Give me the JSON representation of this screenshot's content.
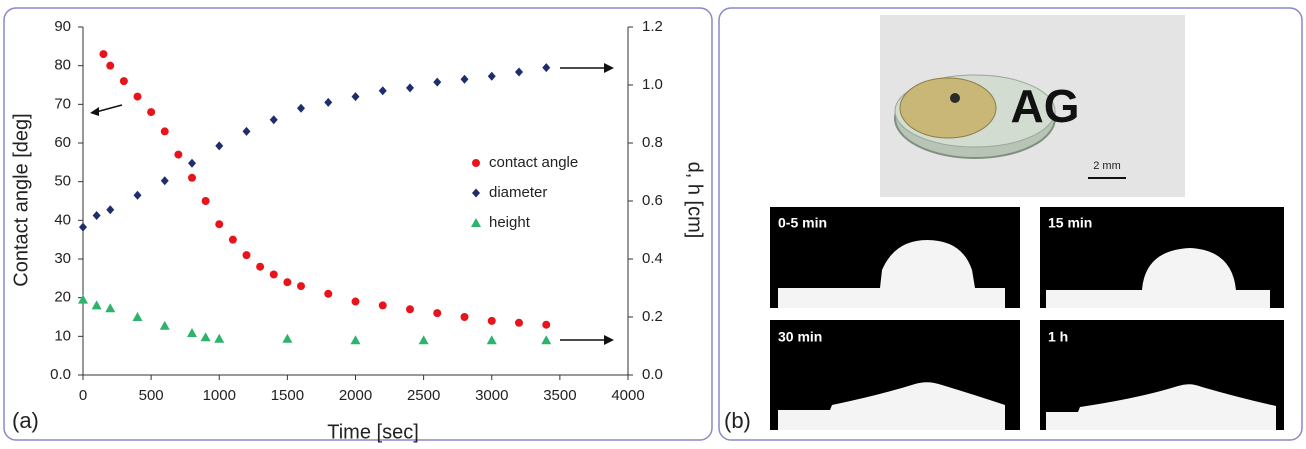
{
  "chart_data": {
    "type": "scatter",
    "x_label": "Time [sec]",
    "y_label": "Contact angle [deg]",
    "y2_label": "d, h [cm]",
    "xlim": [
      0,
      4000
    ],
    "xticks": [
      0,
      500,
      1000,
      1500,
      2000,
      2500,
      3000,
      3500,
      4000
    ],
    "ylim": [
      0,
      90
    ],
    "yticks": [
      {
        "value": 0,
        "label": "0.0"
      },
      10,
      20,
      30,
      40,
      50,
      60,
      70,
      80,
      90
    ],
    "y2lim": [
      0,
      1.2
    ],
    "y2ticks": [
      {
        "value": 0,
        "label": "0.0"
      },
      0.2,
      0.4,
      0.6,
      0.8,
      {
        "value": 1,
        "label": "1.0"
      },
      1.2
    ],
    "legend": "center right",
    "series": [
      {
        "name": "contact angle",
        "color": "#e8141c",
        "marker": "circle",
        "x": [
          150,
          200,
          300,
          400,
          500,
          600,
          700,
          800,
          900,
          1000,
          1100,
          1200,
          1300,
          1400,
          1500,
          1600,
          1800,
          2000,
          2200,
          2400,
          2600,
          2800,
          3000,
          3200,
          3400
        ],
        "values": [
          83,
          80,
          76,
          72,
          68,
          63,
          57,
          51,
          45,
          39,
          35,
          31,
          28,
          26,
          24,
          23,
          21,
          19,
          18,
          17,
          16,
          15,
          14,
          13.5,
          13
        ]
      },
      {
        "name": "diameter",
        "color": "#1f2d6e",
        "marker": "diamond",
        "axis": "y2",
        "x": [
          0,
          100,
          200,
          400,
          600,
          800,
          1000,
          1200,
          1400,
          1600,
          1800,
          2000,
          2200,
          2400,
          2600,
          2800,
          3000,
          3200,
          3400
        ],
        "values": [
          0.51,
          0.55,
          0.57,
          0.62,
          0.67,
          0.73,
          0.79,
          0.84,
          0.88,
          0.92,
          0.94,
          0.96,
          0.98,
          0.99,
          1.01,
          1.02,
          1.03,
          1.045,
          1.06
        ]
      },
      {
        "name": "height",
        "color": "#2db36b",
        "marker": "triangle",
        "axis": "y2",
        "x": [
          0,
          100,
          200,
          400,
          600,
          800,
          900,
          1000,
          1500,
          2000,
          2500,
          3000,
          3400
        ],
        "values": [
          0.26,
          0.24,
          0.23,
          0.2,
          0.17,
          0.145,
          0.13,
          0.125,
          0.125,
          0.12,
          0.12,
          0.12,
          0.12
        ]
      }
    ]
  },
  "panel_labels": [
    "(a)",
    "(b)"
  ],
  "photo": {
    "text": "AG",
    "scale_label": "2 mm"
  },
  "frames": [
    "0-5 min",
    "15 min",
    "30 min",
    "1 h"
  ]
}
